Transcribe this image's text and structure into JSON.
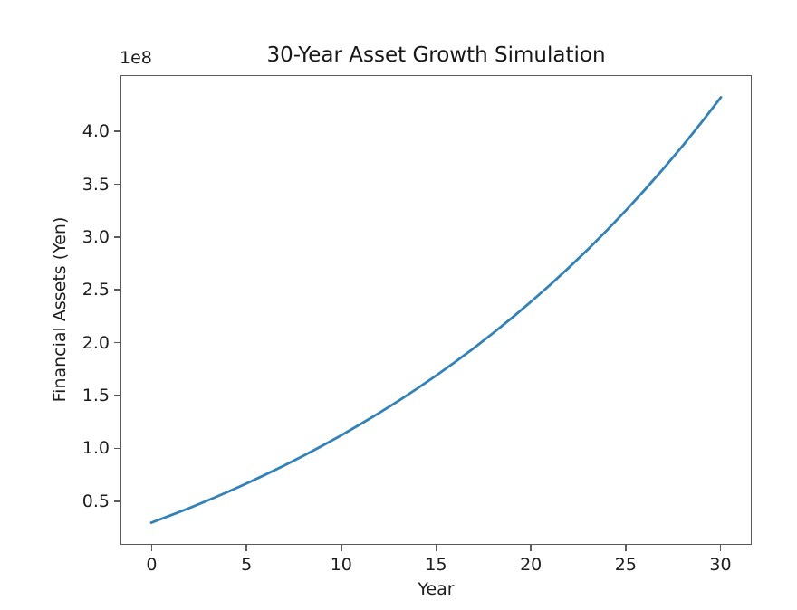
{
  "figure": {
    "background": "#ffffff"
  },
  "chart_data": {
    "type": "line",
    "title": "30-Year Asset Growth Simulation",
    "xlabel": "Year",
    "ylabel": "Financial Assets (Yen)",
    "y_offset_text": "1e8",
    "grid": false,
    "legend": false,
    "line_color": "#1f77b4",
    "spine_color": "#5a5a5a",
    "x": [
      0,
      1,
      2,
      3,
      4,
      5,
      6,
      7,
      8,
      9,
      10,
      11,
      12,
      13,
      14,
      15,
      16,
      17,
      18,
      19,
      20,
      21,
      22,
      23,
      24,
      25,
      26,
      27,
      28,
      29,
      30
    ],
    "series": [
      {
        "name": "Financial Assets",
        "values": [
          30000000,
          36800000,
          43800000,
          51200000,
          58900000,
          66900000,
          75300000,
          84000000,
          93100000,
          102600000,
          112500000,
          122900000,
          133700000,
          144900000,
          156700000,
          169000000,
          181800000,
          195100000,
          209100000,
          223600000,
          238800000,
          254600000,
          271100000,
          288300000,
          306300000,
          325100000,
          344700000,
          365100000,
          386400000,
          408700000,
          431900000
        ]
      }
    ],
    "xticks": {
      "values": [
        0,
        5,
        10,
        15,
        20,
        25,
        30
      ],
      "labels": [
        "0",
        "5",
        "10",
        "15",
        "20",
        "25",
        "30"
      ]
    },
    "yticks": {
      "values": [
        50000000,
        100000000,
        150000000,
        200000000,
        250000000,
        300000000,
        350000000,
        400000000
      ],
      "labels": [
        "0.5",
        "1.0",
        "1.5",
        "2.0",
        "2.5",
        "3.0",
        "3.5",
        "4.0"
      ]
    },
    "xlim": [
      -1.575,
      31.575
    ],
    "ylim": [
      9950000,
      452000000
    ]
  }
}
